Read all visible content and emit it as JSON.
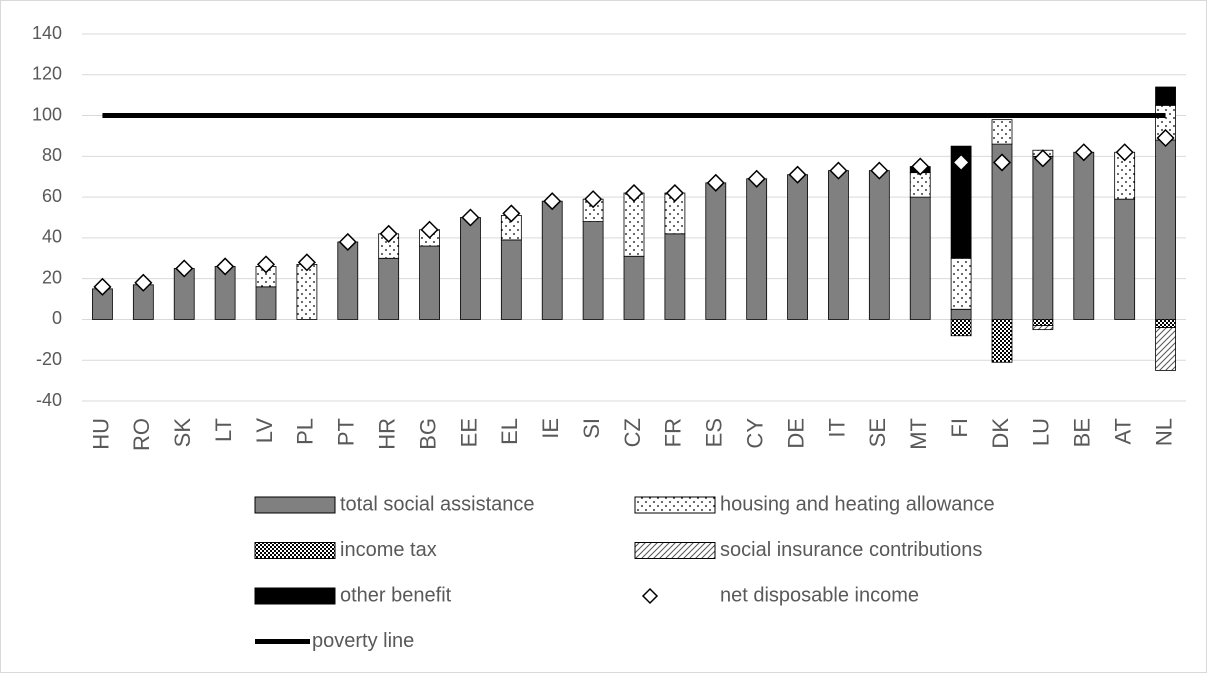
{
  "chart_data": {
    "type": "bar",
    "categories": [
      "HU",
      "RO",
      "SK",
      "LT",
      "LV",
      "PL",
      "PT",
      "HR",
      "BG",
      "EE",
      "EL",
      "IE",
      "SI",
      "CZ",
      "FR",
      "ES",
      "CY",
      "DE",
      "IT",
      "SE",
      "MT",
      "FI",
      "DK",
      "LU",
      "BE",
      "AT",
      "NL"
    ],
    "series": [
      {
        "name": "total social assistance",
        "kind": "bar",
        "color": "#808080",
        "pattern": "solid",
        "values": [
          15,
          17,
          25,
          26,
          16,
          0,
          38,
          30,
          36,
          50,
          39,
          58,
          48,
          31,
          42,
          67,
          69,
          71,
          73,
          73,
          60,
          5,
          86,
          80,
          82,
          59,
          88
        ]
      },
      {
        "name": "housing and heating allowance",
        "kind": "bar",
        "color": "#ffffff",
        "pattern": "dots",
        "values": [
          0,
          0,
          0,
          0,
          10,
          27,
          0,
          12,
          8,
          0,
          12,
          0,
          11,
          31,
          20,
          0,
          0,
          0,
          0,
          0,
          12,
          25,
          12,
          3,
          0,
          23,
          17
        ]
      },
      {
        "name": "income tax",
        "kind": "bar",
        "color": "#ffffff",
        "pattern": "crosshatch",
        "values": [
          0,
          0,
          0,
          0,
          0,
          0,
          0,
          0,
          0,
          0,
          0,
          0,
          0,
          0,
          0,
          0,
          0,
          0,
          0,
          0,
          0,
          -8,
          -21,
          -3,
          0,
          0,
          -4
        ]
      },
      {
        "name": "social insurance contributions",
        "kind": "bar",
        "color": "#ffffff",
        "pattern": "diagonal",
        "values": [
          0,
          0,
          0,
          0,
          0,
          0,
          0,
          0,
          0,
          0,
          0,
          0,
          0,
          0,
          0,
          0,
          0,
          0,
          0,
          0,
          0,
          0,
          0,
          -2,
          0,
          0,
          -21
        ]
      },
      {
        "name": "other benefit",
        "kind": "bar",
        "color": "#000000",
        "pattern": "solid",
        "values": [
          0,
          0,
          0,
          0,
          0,
          0,
          0,
          0,
          0,
          0,
          0,
          0,
          0,
          0,
          0,
          0,
          0,
          0,
          0,
          0,
          3,
          55,
          0,
          0,
          0,
          0,
          9
        ]
      },
      {
        "name": "net disposable income",
        "kind": "marker",
        "color": "#000000",
        "values": [
          16,
          18,
          25,
          26,
          27,
          28,
          38,
          42,
          44,
          50,
          52,
          58,
          59,
          62,
          62,
          67,
          69,
          71,
          73,
          73,
          75,
          77,
          77,
          79,
          82,
          82,
          89
        ]
      },
      {
        "name": "poverty line",
        "kind": "line",
        "color": "#000000",
        "values": [
          100,
          100,
          100,
          100,
          100,
          100,
          100,
          100,
          100,
          100,
          100,
          100,
          100,
          100,
          100,
          100,
          100,
          100,
          100,
          100,
          100,
          100,
          100,
          100,
          100,
          100,
          100
        ]
      }
    ],
    "ylim": [
      -40,
      140
    ],
    "yticks": [
      -40,
      -20,
      0,
      20,
      40,
      60,
      80,
      100,
      120,
      140
    ],
    "grid": true
  }
}
